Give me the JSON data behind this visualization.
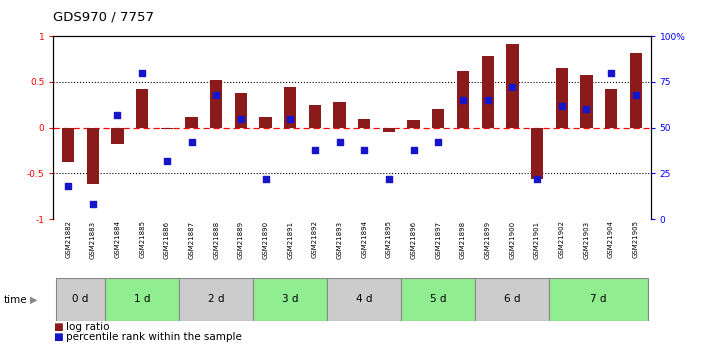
{
  "title": "GDS970 / 7757",
  "samples": [
    "GSM21882",
    "GSM21883",
    "GSM21884",
    "GSM21885",
    "GSM21886",
    "GSM21887",
    "GSM21888",
    "GSM21889",
    "GSM21890",
    "GSM21891",
    "GSM21892",
    "GSM21893",
    "GSM21894",
    "GSM21895",
    "GSM21896",
    "GSM21897",
    "GSM21898",
    "GSM21899",
    "GSM21900",
    "GSM21901",
    "GSM21902",
    "GSM21903",
    "GSM21904",
    "GSM21905"
  ],
  "log_ratio": [
    -0.38,
    -0.62,
    -0.18,
    0.42,
    -0.02,
    0.12,
    0.52,
    0.38,
    0.12,
    0.45,
    0.25,
    0.28,
    0.1,
    -0.05,
    0.08,
    0.2,
    0.62,
    0.78,
    0.92,
    -0.56,
    0.65,
    0.58,
    0.42,
    0.82
  ],
  "percentile": [
    18,
    8,
    57,
    80,
    32,
    42,
    68,
    55,
    22,
    55,
    38,
    42,
    38,
    22,
    38,
    42,
    65,
    65,
    72,
    22,
    62,
    60,
    80,
    68
  ],
  "groups": [
    {
      "label": "0 d",
      "start": 0,
      "end": 2,
      "color": "#cccccc"
    },
    {
      "label": "1 d",
      "start": 2,
      "end": 5,
      "color": "#90ee90"
    },
    {
      "label": "2 d",
      "start": 5,
      "end": 8,
      "color": "#cccccc"
    },
    {
      "label": "3 d",
      "start": 8,
      "end": 11,
      "color": "#90ee90"
    },
    {
      "label": "4 d",
      "start": 11,
      "end": 14,
      "color": "#cccccc"
    },
    {
      "label": "5 d",
      "start": 14,
      "end": 17,
      "color": "#90ee90"
    },
    {
      "label": "6 d",
      "start": 17,
      "end": 20,
      "color": "#cccccc"
    },
    {
      "label": "7 d",
      "start": 20,
      "end": 24,
      "color": "#90ee90"
    }
  ],
  "bar_color": "#8B1A1A",
  "dot_color": "#1515CC",
  "bar_width": 0.5,
  "dot_size": 18,
  "yticks_left": [
    -1,
    -0.5,
    0,
    0.5,
    1
  ],
  "ytick_labels_left": [
    "-1",
    "-0.5",
    "0",
    "0.5",
    "1"
  ],
  "ytick_labels_right": [
    "0",
    "25",
    "50",
    "75",
    "100%"
  ],
  "legend_log_ratio_color": "#8B1A1A",
  "legend_percentile_color": "#1515CC"
}
